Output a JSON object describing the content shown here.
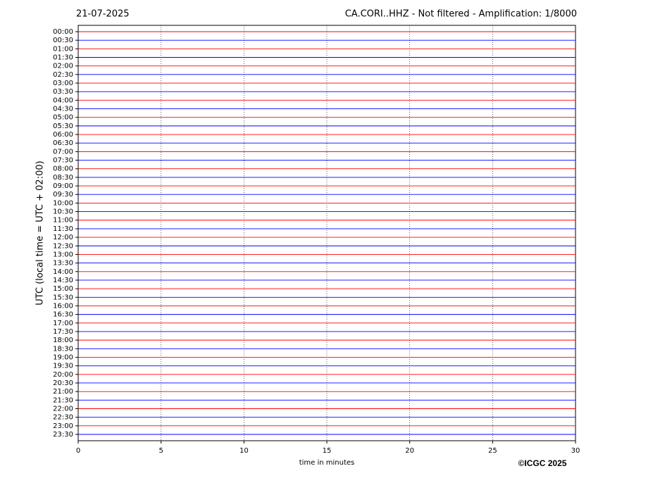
{
  "chart_data": {
    "type": "helicorder",
    "date": "21-07-2025",
    "title": "CA.CORI..HHZ - Not filtered - Amplification: 1/8000",
    "ylabel": "UTC (local time = UTC + 02:00)",
    "xlabel": "time in minutes",
    "credit": "©ICGC 2025",
    "categories": [
      "00:00",
      "00:30",
      "01:00",
      "01:30",
      "02:00",
      "02:30",
      "03:00",
      "03:30",
      "04:00",
      "04:30",
      "05:00",
      "05:30",
      "06:00",
      "06:30",
      "07:00",
      "07:30",
      "08:00",
      "08:30",
      "09:00",
      "09:30",
      "10:00",
      "10:30",
      "11:00",
      "11:30",
      "12:00",
      "12:30",
      "13:00",
      "13:30",
      "14:00",
      "14:30",
      "15:00",
      "15:30",
      "16:00",
      "16:30",
      "17:00",
      "17:30",
      "18:00",
      "18:30",
      "19:00",
      "19:30",
      "20:00",
      "20:30",
      "21:00",
      "21:30",
      "22:00",
      "22:30",
      "23:00",
      "23:30"
    ],
    "trace_colors": [
      "#ff0000",
      "#0000ff"
    ],
    "xlim": [
      0,
      30
    ],
    "xticks": [
      0,
      5,
      10,
      15,
      20,
      25,
      30
    ],
    "grid": true
  }
}
